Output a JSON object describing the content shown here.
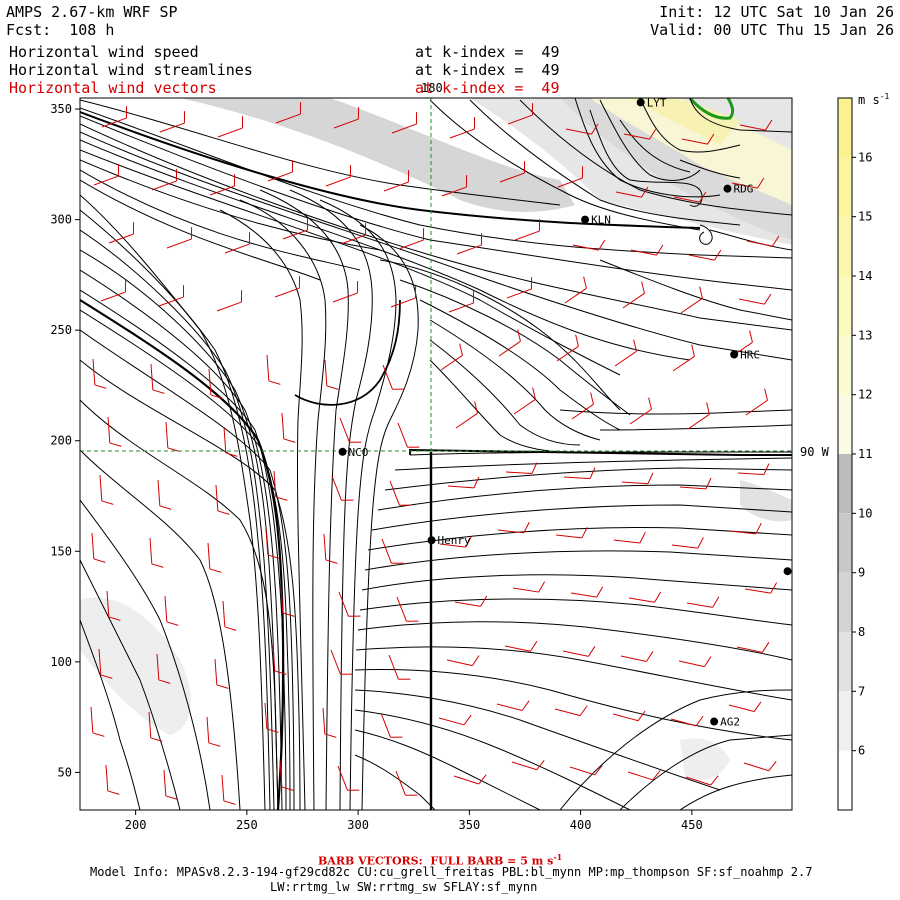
{
  "header": {
    "title": "AMPS 2.67-km WRF SP",
    "forecast": "Fcst:  108 h",
    "init": "Init: 12 UTC Sat 10 Jan 26",
    "valid": "Valid: 00 UTC Thu 15 Jan 26"
  },
  "fields": [
    {
      "name": "Horizontal wind speed",
      "level": "at k-index =  49",
      "color": "#000000"
    },
    {
      "name": "Horizontal wind streamlines",
      "level": "at k-index =  49",
      "color": "#000000"
    },
    {
      "name": "Horizontal wind vectors",
      "level": "at k-index =  49",
      "color": "#d40000"
    }
  ],
  "axes": {
    "x_ticks": [
      "200",
      "250",
      "300",
      "350",
      "400",
      "450"
    ],
    "y_ticks": [
      "50",
      "100",
      "150",
      "200",
      "250",
      "300",
      "350"
    ],
    "x_range": [
      175,
      495
    ],
    "y_range": [
      33,
      355
    ]
  },
  "grid_lines": {
    "meridian_label": "180",
    "parallel_label": "90 W",
    "meridian_x": 330,
    "parallel_y": 195,
    "color": "#2a8a2a"
  },
  "stations": [
    {
      "name": "LYT",
      "x": 427,
      "y": 353
    },
    {
      "name": "RDG",
      "x": 466,
      "y": 314
    },
    {
      "name": "KLN",
      "x": 402,
      "y": 300
    },
    {
      "name": "HRC",
      "x": 469,
      "y": 239
    },
    {
      "name": "NCO",
      "x": 293,
      "y": 195
    },
    {
      "name": "Henry",
      "x": 333,
      "y": 155
    },
    {
      "name": "AG2",
      "x": 460,
      "y": 73
    },
    {
      "name": "",
      "x": 493,
      "y": 141
    }
  ],
  "colorbar": {
    "unit": "m s",
    "unit_exp": "-1",
    "labels": [
      "6",
      "7",
      "8",
      "9",
      "10",
      "11",
      "12",
      "13",
      "14",
      "15",
      "16"
    ],
    "colors": [
      "#ffffff",
      "#f0f0f0",
      "#e2e2e2",
      "#d4d4d4",
      "#c8c8c8",
      "#bcbcbc",
      "#fbfbe3",
      "#fbfbd1",
      "#fbfbc0",
      "#fbf8ad",
      "#fbf59f",
      "#fbf28f"
    ]
  },
  "footer": {
    "barb_label": "BARB VECTORS:  FULL BARB = 5 m s",
    "barb_exp": "-1",
    "model_info": "Model Info: MPASv8.2.3-194-gf29cd82c CU:cu_grell_freitas PBL:bl_mynn MP:mp_thompson SF:sf_noahmp 2.7",
    "model_info2": "LW:rrtmg_lw SW:rrtmg_sw SFLAY:sf_mynn"
  }
}
